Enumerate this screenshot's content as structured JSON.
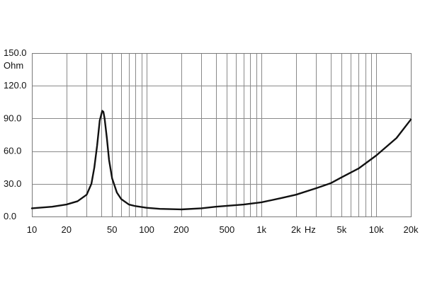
{
  "chart_data": {
    "type": "line",
    "x_scale": "log",
    "xlim": [
      10,
      20000
    ],
    "ylim": [
      0,
      150
    ],
    "grid": true,
    "legend": "none",
    "ylabel": "Ohm",
    "x_unit_label": "Hz",
    "x_ticks": [
      {
        "value": 10,
        "label": "10"
      },
      {
        "value": 20,
        "label": "20"
      },
      {
        "value": 50,
        "label": "50"
      },
      {
        "value": 100,
        "label": "100"
      },
      {
        "value": 200,
        "label": "200"
      },
      {
        "value": 500,
        "label": "500"
      },
      {
        "value": 1000,
        "label": "1k"
      },
      {
        "value": 2000,
        "label": "2k"
      },
      {
        "value": 5000,
        "label": "5k"
      },
      {
        "value": 10000,
        "label": "10k"
      },
      {
        "value": 20000,
        "label": "20k"
      }
    ],
    "x_gridlines": [
      10,
      20,
      30,
      40,
      50,
      60,
      70,
      80,
      90,
      100,
      200,
      300,
      400,
      500,
      600,
      700,
      800,
      900,
      1000,
      2000,
      3000,
      4000,
      5000,
      6000,
      7000,
      8000,
      9000,
      10000,
      20000
    ],
    "y_ticks": [
      {
        "value": 0,
        "label": "0.0"
      },
      {
        "value": 30,
        "label": "30.0"
      },
      {
        "value": 60,
        "label": "60.0"
      },
      {
        "value": 90,
        "label": "90.0"
      },
      {
        "value": 120,
        "label": "120.0"
      },
      {
        "value": 150,
        "label": "150.0"
      }
    ],
    "series": [
      {
        "color": "#111111",
        "x": [
          10,
          15,
          20,
          25,
          30,
          33,
          35,
          37,
          39,
          41,
          42,
          43,
          45,
          47,
          50,
          55,
          60,
          70,
          80,
          100,
          130,
          200,
          300,
          400,
          500,
          700,
          1000,
          1500,
          2000,
          3000,
          4000,
          5000,
          7000,
          10000,
          15000,
          20000
        ],
        "y": [
          7.5,
          9,
          11,
          14,
          20,
          30,
          45,
          65,
          88,
          97,
          96,
          90,
          72,
          52,
          35,
          22,
          16,
          11,
          9.5,
          8,
          7,
          6.5,
          7.5,
          9,
          9.8,
          11,
          13,
          17,
          20,
          26,
          30.5,
          36,
          44,
          56,
          72,
          89
        ]
      }
    ]
  }
}
